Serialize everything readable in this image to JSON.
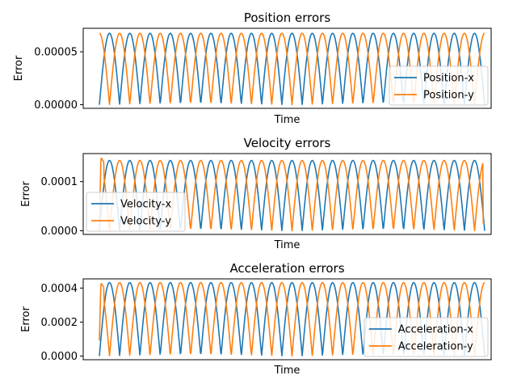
{
  "colors": {
    "series_x": "#1f77b4",
    "series_y": "#ff7f0e"
  },
  "chart_data": [
    {
      "type": "line",
      "title": "Position errors",
      "xlabel": "Time",
      "ylabel": "Error",
      "ylim": [
        -3.4e-06,
        7.22e-05
      ],
      "yticks": [
        0,
        5e-05
      ],
      "ytick_labels": [
        "0.00000",
        "0.00005"
      ],
      "xticks": [],
      "legend_loc": "lower right",
      "series": [
        {
          "name": "Position-x",
          "color": "#1f77b4",
          "shape": "abs_sine",
          "amplitude": 6.75e-05,
          "cycles": 19,
          "phase": 0,
          "ymin": 0
        },
        {
          "name": "Position-y",
          "color": "#ff7f0e",
          "shape": "abs_sine",
          "amplitude": 6.75e-05,
          "cycles": 19,
          "phase": 0.5,
          "ymin": 0
        }
      ]
    },
    {
      "type": "line",
      "title": "Velocity errors",
      "xlabel": "Time",
      "ylabel": "Error",
      "ylim": [
        -7.4e-06,
        0.000157
      ],
      "yticks": [
        0,
        0.0001
      ],
      "ytick_labels": [
        "0.0000",
        "0.0001"
      ],
      "xticks": [],
      "legend_loc": "lower left",
      "series": [
        {
          "name": "Velocity-x",
          "color": "#1f77b4",
          "shape": "abs_sine",
          "amplitude": 0.000143,
          "cycles": 19,
          "phase": 0,
          "ymin": 0
        },
        {
          "name": "Velocity-y",
          "color": "#ff7f0e",
          "shape": "abs_sine",
          "amplitude": 0.000143,
          "cycles": 19,
          "phase": 0.5,
          "ymin": 0,
          "start_spike": 0.000149,
          "end_value": 1.6e-05
        }
      ]
    },
    {
      "type": "line",
      "title": "Acceleration errors",
      "xlabel": "Time",
      "ylabel": "Error",
      "ylim": [
        -2.16e-05,
        0.000454
      ],
      "yticks": [
        0,
        0.0002,
        0.0004
      ],
      "ytick_labels": [
        "0.0000",
        "0.0002",
        "0.0004"
      ],
      "xticks": [],
      "legend_loc": "lower right",
      "series": [
        {
          "name": "Acceleration-x",
          "color": "#1f77b4",
          "shape": "abs_sine",
          "amplitude": 0.000432,
          "cycles": 19,
          "phase": 0,
          "ymin": 0
        },
        {
          "name": "Acceleration-y",
          "color": "#ff7f0e",
          "shape": "abs_sine",
          "amplitude": 0.000432,
          "cycles": 19,
          "phase": 0.5,
          "ymin": 0,
          "start_value": 9e-05,
          "start_spike": 0.00043
        }
      ]
    }
  ]
}
